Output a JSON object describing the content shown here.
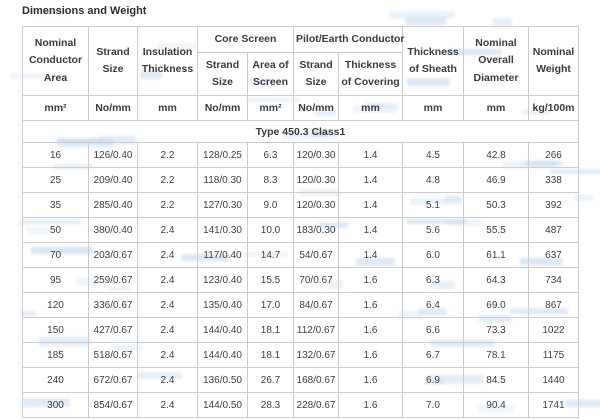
{
  "page_title": "Dimensions and Weight",
  "watermark_color": "#aecbe8",
  "table": {
    "header": {
      "nominal_conductor_area": "Nominal Conductor Area",
      "strand_size": "Strand Size",
      "insulation_thickness": "Insulation Thickness",
      "core_screen": "Core Screen",
      "pilot_earth_conductor": "Pilot/Earth Conductor",
      "cs_strand_size": "Strand Size",
      "cs_area_of_screen": "Area of Screen",
      "pe_strand_size": "Strand Size",
      "pe_thickness_of_covering": "Thickness of Covering",
      "thickness_of_sheath": "Thickness of Sheath",
      "nominal_overall_diameter": "Nominal Overall Diameter",
      "nominal_weight": "Nominal Weight"
    },
    "units": [
      "mm²",
      "No/mm",
      "mm",
      "No/mm",
      "mm²",
      "No/mm",
      "mm",
      "mm",
      "mm",
      "kg/100m"
    ],
    "type_row": "Type 450.3 Class1",
    "rows": [
      [
        "16",
        "126/0.40",
        "2.2",
        "128/0.25",
        "6.3",
        "120/0.30",
        "1.4",
        "4.5",
        "42.8",
        "266"
      ],
      [
        "25",
        "209/0.40",
        "2.2",
        "118/0.30",
        "8.3",
        "120/0.30",
        "1.4",
        "4.8",
        "46.9",
        "338"
      ],
      [
        "35",
        "285/0.40",
        "2.2",
        "127/0.30",
        "9.0",
        "120/0.30",
        "1.4",
        "5.1",
        "50.3",
        "392"
      ],
      [
        "50",
        "380/0.40",
        "2.4",
        "141/0.30",
        "10.0",
        "183/0.30",
        "1.4",
        "5.6",
        "55.5",
        "487"
      ],
      [
        "70",
        "203/0.67",
        "2.4",
        "117/0.40",
        "14.7",
        "54/0.67",
        "1.4",
        "6.0",
        "61.1",
        "637"
      ],
      [
        "95",
        "259/0.67",
        "2.4",
        "123/0.40",
        "15.5",
        "70/0.67",
        "1.6",
        "6.3",
        "64.3",
        "734"
      ],
      [
        "120",
        "336/0.67",
        "2.4",
        "135/0.40",
        "17.0",
        "84/0.67",
        "1.6",
        "6.4",
        "69.0",
        "867"
      ],
      [
        "150",
        "427/0.67",
        "2.4",
        "144/0.40",
        "18.1",
        "112/0.67",
        "1.6",
        "6.6",
        "73.3",
        "1022"
      ],
      [
        "185",
        "518/0.67",
        "2.4",
        "144/0.40",
        "18.1",
        "132/0.67",
        "1.6",
        "6.7",
        "78.1",
        "1175"
      ],
      [
        "240",
        "672/0.67",
        "2.4",
        "136/0.50",
        "26.7",
        "168/0.67",
        "1.6",
        "6.9",
        "84.5",
        "1440"
      ],
      [
        "300",
        "854/0.67",
        "2.4",
        "144/0.50",
        "28.3",
        "228/0.67",
        "1.6",
        "7.0",
        "90.4",
        "1741"
      ]
    ]
  }
}
